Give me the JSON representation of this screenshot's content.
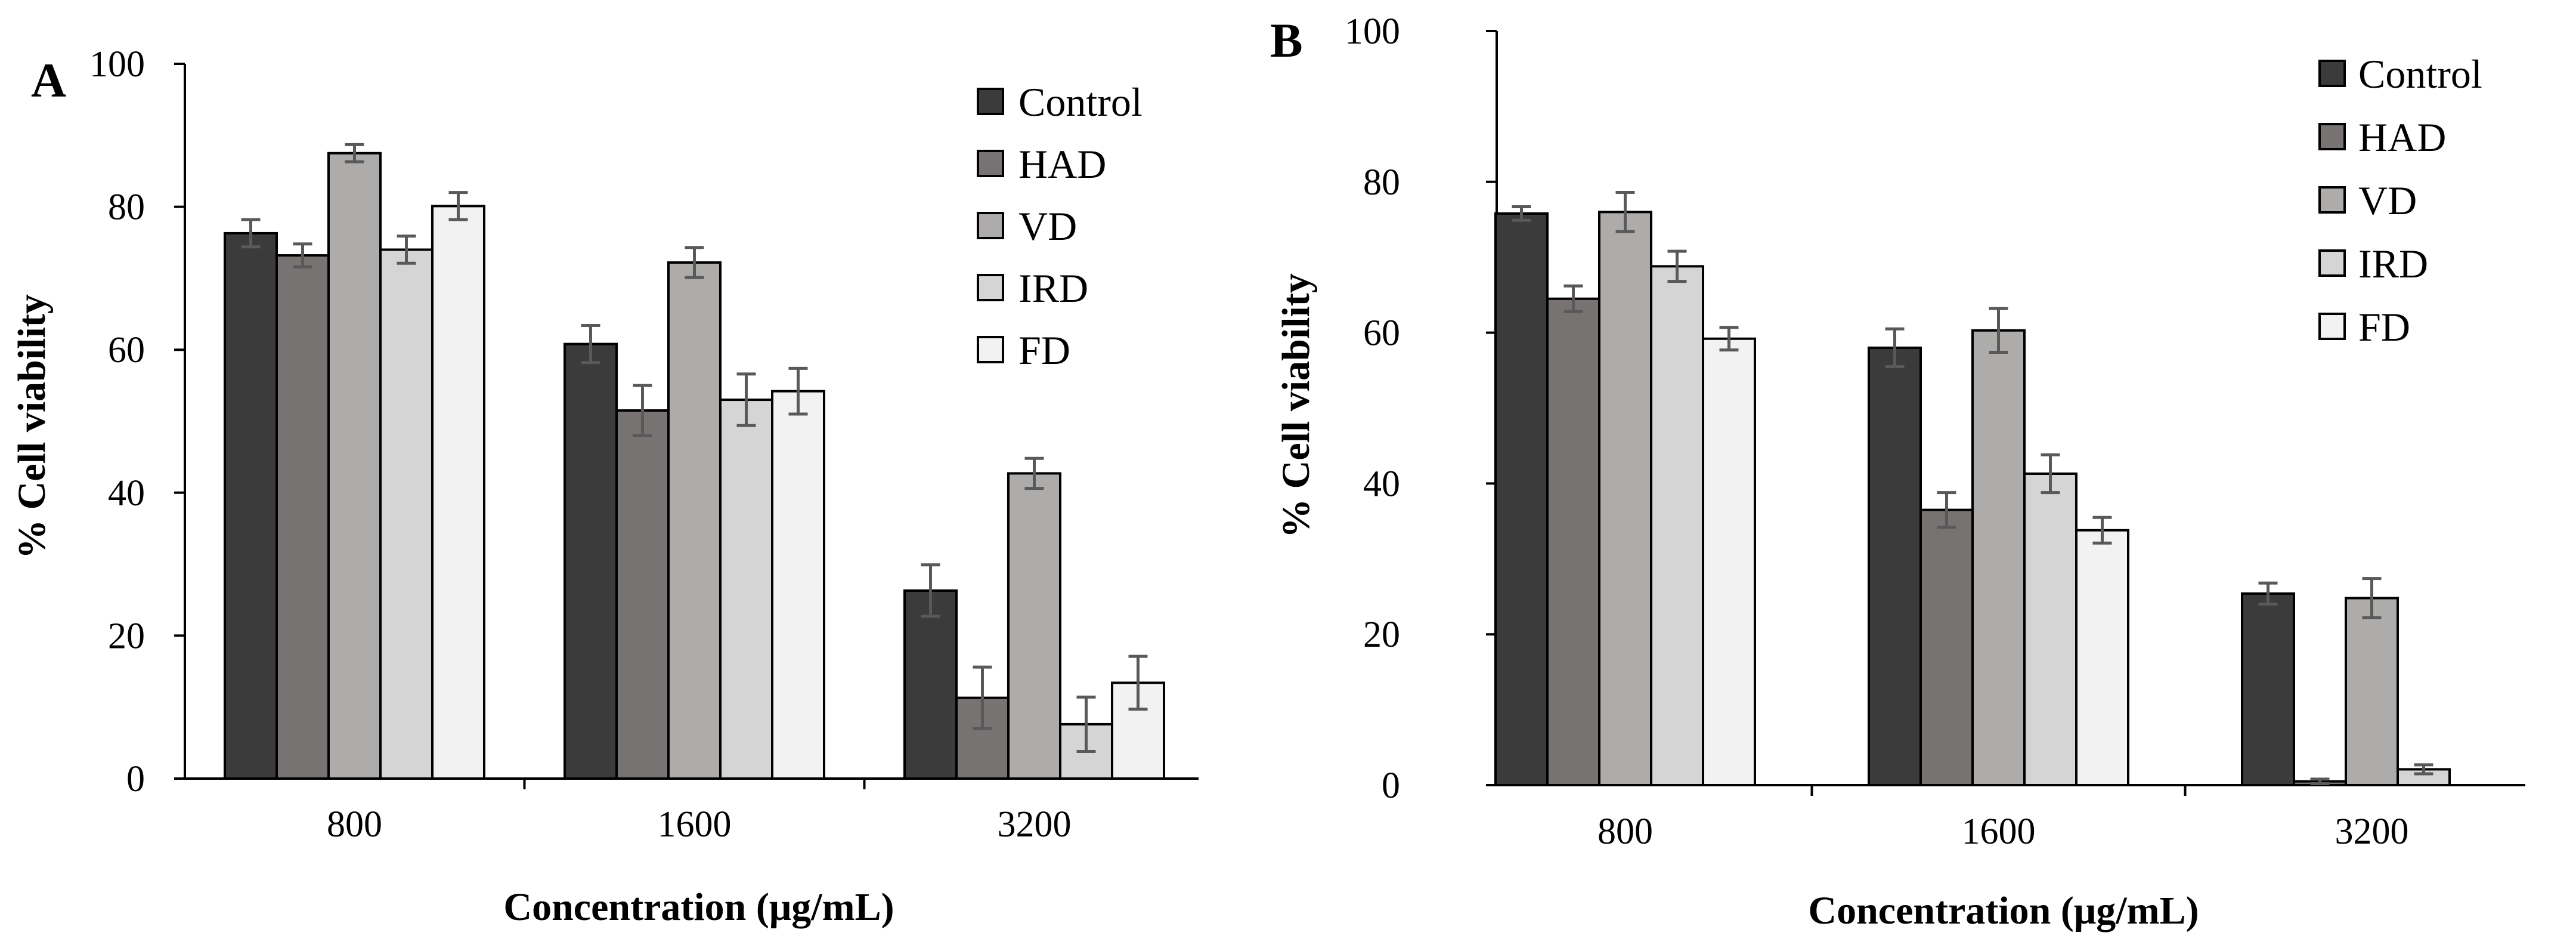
{
  "colors": {
    "Control": "#3b3b3b",
    "HAD": "#777372",
    "VD": "#aeabab",
    "IRD": "#d6d5d6",
    "FD": "#f2f2f2",
    "errorbar": "#595959"
  },
  "chart_data": [
    {
      "panel": "A",
      "type": "bar",
      "xlabel": "Concentration (μg/mL)",
      "ylabel": "% Cell viability",
      "ylim": [
        0,
        100
      ],
      "yticks": [
        0,
        20,
        40,
        60,
        80,
        100
      ],
      "legend": "top-right",
      "categories": [
        "800",
        "1600",
        "3200"
      ],
      "series": [
        {
          "name": "Control",
          "values": [
            76.3,
            60.8,
            26.3
          ],
          "errors": [
            1.9,
            2.6,
            3.6
          ]
        },
        {
          "name": "HAD",
          "values": [
            73.2,
            51.5,
            11.3
          ],
          "errors": [
            1.6,
            3.5,
            4.3
          ]
        },
        {
          "name": "VD",
          "values": [
            87.5,
            72.2,
            42.7
          ],
          "errors": [
            1.2,
            2.1,
            2.1
          ]
        },
        {
          "name": "IRD",
          "values": [
            74.0,
            53.0,
            7.6
          ],
          "errors": [
            1.9,
            3.6,
            3.8
          ]
        },
        {
          "name": "FD",
          "values": [
            80.1,
            54.2,
            13.4
          ],
          "errors": [
            1.9,
            3.2,
            3.7
          ]
        }
      ]
    },
    {
      "panel": "B",
      "type": "bar",
      "xlabel": "Concentration (μg/mL)",
      "ylabel": "% Cell viability",
      "ylim": [
        0,
        100
      ],
      "yticks": [
        0,
        20,
        40,
        60,
        80,
        100
      ],
      "legend": "top-right",
      "categories": [
        "800",
        "1600",
        "3200"
      ],
      "series": [
        {
          "name": "Control",
          "values": [
            75.8,
            58.0,
            25.4
          ],
          "errors": [
            0.9,
            2.5,
            1.4
          ]
        },
        {
          "name": "HAD",
          "values": [
            64.5,
            36.5,
            0.5
          ],
          "errors": [
            1.7,
            2.3,
            0.3
          ]
        },
        {
          "name": "VD",
          "values": [
            76.0,
            60.3,
            24.8
          ],
          "errors": [
            2.6,
            2.9,
            2.6
          ]
        },
        {
          "name": "IRD",
          "values": [
            68.8,
            41.3,
            2.1
          ],
          "errors": [
            2.0,
            2.5,
            0.6
          ]
        },
        {
          "name": "FD",
          "values": [
            59.2,
            33.8,
            0.0
          ],
          "errors": [
            1.5,
            1.7,
            0.0
          ]
        }
      ]
    }
  ]
}
